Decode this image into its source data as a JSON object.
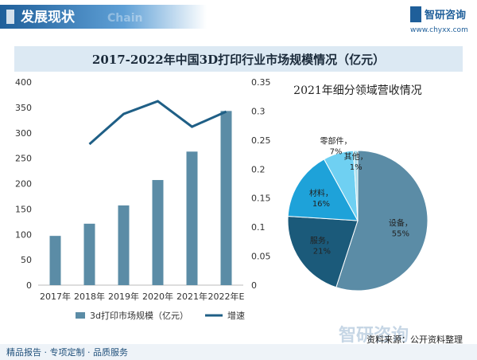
{
  "header": {
    "title": "发展现状",
    "watermark": "Chain",
    "brand": "智研咨询",
    "url": "www.chyxx.com"
  },
  "chart_data": [
    {
      "type": "bar",
      "title": "2017-2022年中国3D打印行业市场规模情况（亿元）",
      "categories": [
        "2017年",
        "2018年",
        "2019年",
        "2020年",
        "2021年",
        "2022年E"
      ],
      "series": [
        {
          "name": "3d打印市场规模（亿元）",
          "color": "#5b8ca6",
          "type": "bar",
          "values": [
            97,
            121,
            157,
            207,
            263,
            343
          ]
        },
        {
          "name": "增速",
          "color": "#1f5f86",
          "type": "line",
          "axis": "y2",
          "values": [
            null,
            0.243,
            0.295,
            0.317,
            0.273,
            0.299
          ]
        }
      ],
      "ylim": [
        0,
        400
      ],
      "yticks": [
        0,
        50,
        100,
        150,
        200,
        250,
        300,
        350,
        400
      ],
      "y2lim": [
        0,
        0.35
      ],
      "y2ticks": [
        0,
        0.05,
        0.1,
        0.15,
        0.2,
        0.25,
        0.3,
        0.35
      ],
      "grid": false,
      "legend": "bottom"
    },
    {
      "type": "pie",
      "title": "2021年细分领域营收情况",
      "categories": [
        "设备，",
        "服务，",
        "材料，",
        "零部件，",
        "其他，"
      ],
      "values": [
        55,
        21,
        16,
        7,
        1
      ],
      "value_labels": [
        "55%",
        "21%",
        "16%",
        "7%",
        "1%"
      ],
      "colors": [
        "#5b8ca6",
        "#1b5a7a",
        "#1ea2d9",
        "#6fd0f2",
        "#a9dfee"
      ]
    }
  ],
  "footer": {
    "slogan": "精品报告 · 专项定制 · 品质服务",
    "source": "资料来源：公开资料整理"
  }
}
